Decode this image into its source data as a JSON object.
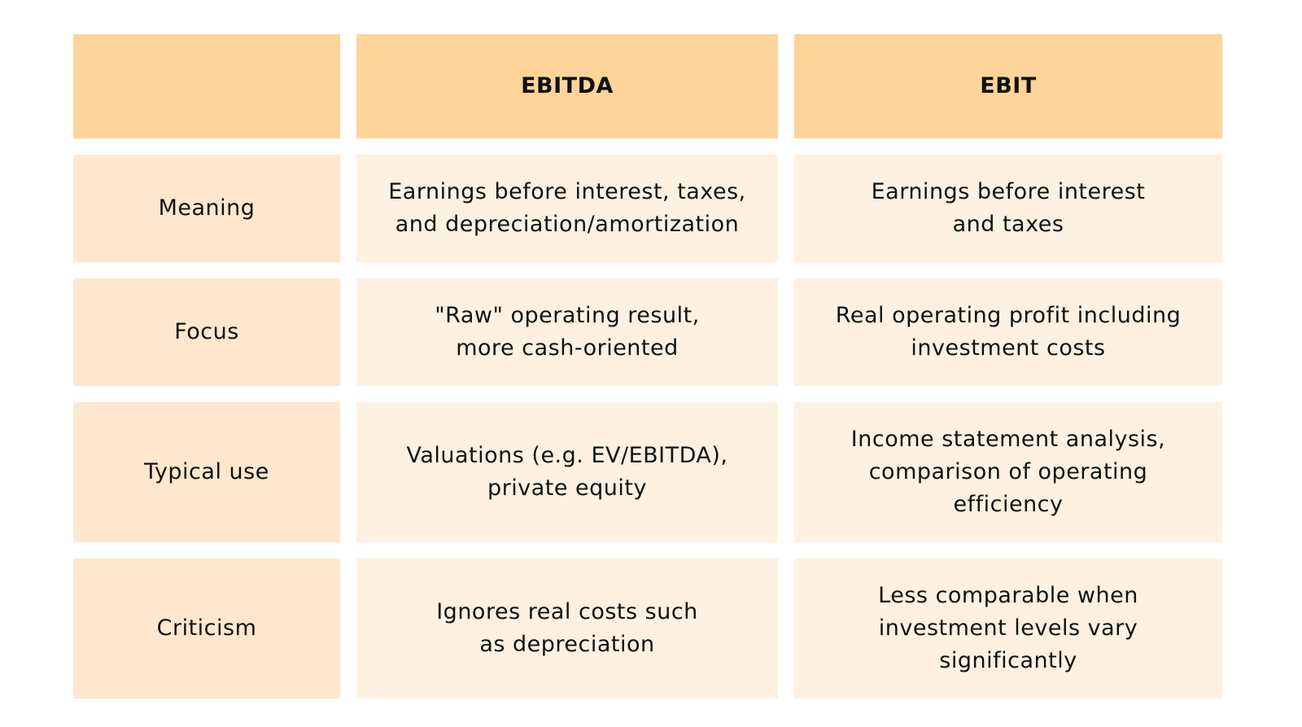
{
  "table": {
    "headers": [
      "",
      "EBITDA",
      "EBIT"
    ],
    "rows": [
      {
        "label": "Meaning",
        "ebitda": "Earnings before interest, taxes,\nand depreciation/amortization",
        "ebit": "Earnings before interest\nand taxes"
      },
      {
        "label": "Focus",
        "ebitda": "\"Raw\" operating result,\nmore cash-oriented",
        "ebit": "Real operating profit including\ninvestment costs"
      },
      {
        "label": "Typical use",
        "ebitda": "Valuations (e.g. EV/EBITDA),\nprivate equity",
        "ebit": "Income statement analysis,\ncomparison of operating\nefficiency"
      },
      {
        "label": "Criticism",
        "ebitda": "Ignores real costs such\nas depreciation",
        "ebit": "Less comparable when\ninvestment levels vary\nsignificantly"
      }
    ]
  },
  "colors": {
    "header_bg": "#fdd59a",
    "label_bg": "#fde8cd",
    "cell_bg": "#fef1e1",
    "text": "#111111"
  }
}
